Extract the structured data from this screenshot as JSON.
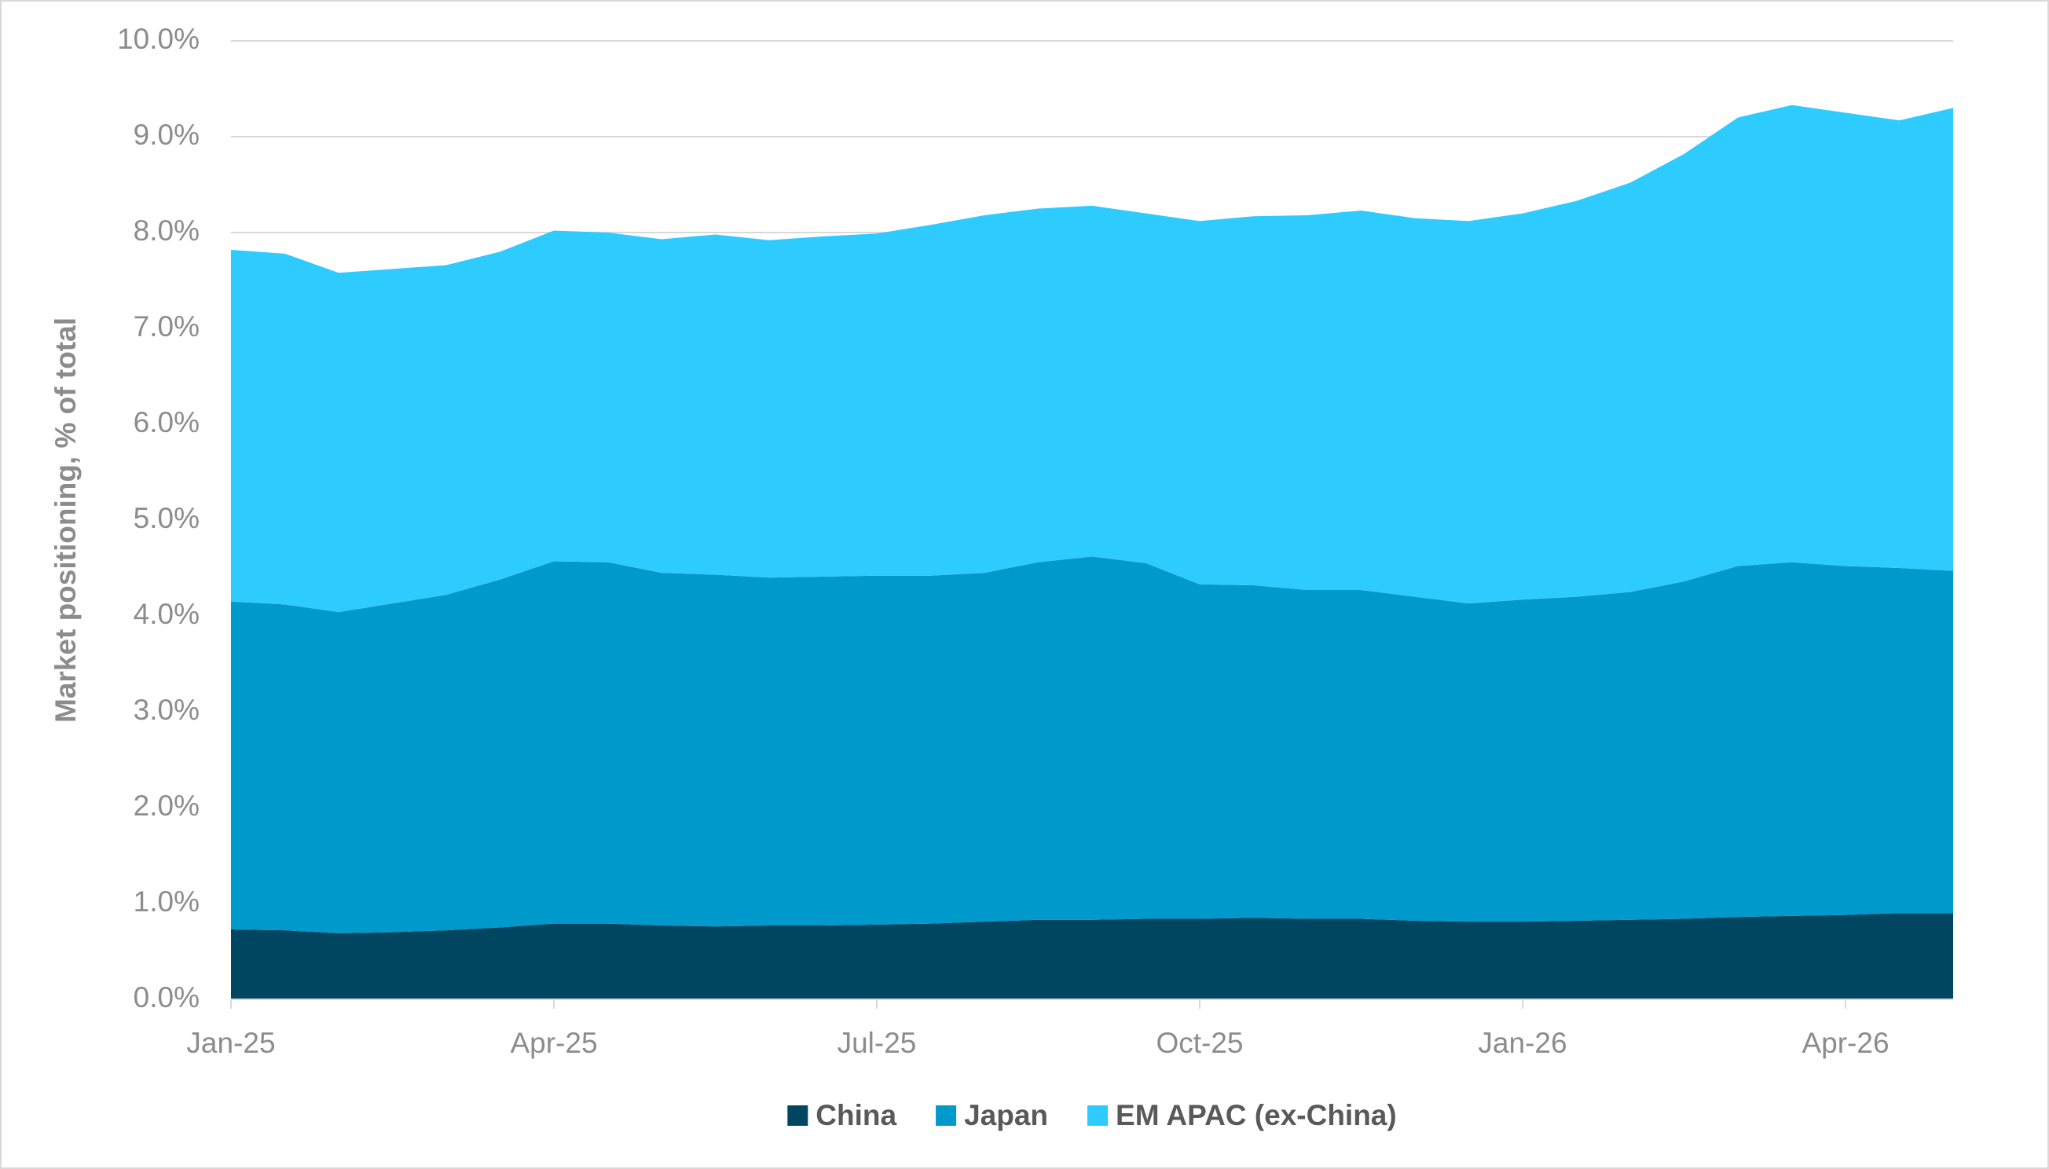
{
  "chart_data": {
    "type": "stacked_area",
    "y_axis_label": "Market positioning, % of total",
    "categories": [
      "Jan-25",
      null,
      null,
      null,
      null,
      null,
      "Apr-25",
      null,
      null,
      null,
      null,
      null,
      "Jul-25",
      null,
      null,
      null,
      null,
      null,
      "Oct-25",
      null,
      null,
      null,
      null,
      null,
      "Jan-26",
      null,
      null,
      null,
      null,
      null,
      "Apr-26",
      null,
      null
    ],
    "series": [
      {
        "name": "China",
        "color": "#004660",
        "values": [
          0.73,
          0.72,
          0.69,
          0.7,
          0.72,
          0.75,
          0.79,
          0.79,
          0.77,
          0.76,
          0.77,
          0.77,
          0.78,
          0.79,
          0.81,
          0.83,
          0.83,
          0.84,
          0.84,
          0.85,
          0.84,
          0.84,
          0.82,
          0.81,
          0.81,
          0.82,
          0.83,
          0.84,
          0.86,
          0.87,
          0.88,
          0.9,
          0.9
        ]
      },
      {
        "name": "Japan",
        "color": "#0099cc",
        "values": [
          3.42,
          3.4,
          3.35,
          3.43,
          3.5,
          3.63,
          3.78,
          3.77,
          3.68,
          3.67,
          3.63,
          3.64,
          3.64,
          3.63,
          3.64,
          3.73,
          3.79,
          3.71,
          3.49,
          3.47,
          3.43,
          3.43,
          3.38,
          3.32,
          3.36,
          3.38,
          3.42,
          3.52,
          3.66,
          3.69,
          3.64,
          3.6,
          3.57
        ]
      },
      {
        "name": "EM APAC (ex-China)",
        "color": "#2ecbff",
        "values": [
          3.67,
          3.66,
          3.54,
          3.49,
          3.44,
          3.42,
          3.45,
          3.44,
          3.48,
          3.55,
          3.52,
          3.55,
          3.57,
          3.66,
          3.73,
          3.69,
          3.66,
          3.65,
          3.79,
          3.85,
          3.91,
          3.96,
          3.95,
          3.99,
          4.03,
          4.13,
          4.27,
          4.46,
          4.68,
          4.77,
          4.73,
          4.67,
          4.83
        ]
      }
    ],
    "ylim": [
      0,
      10
    ],
    "yticks": [
      {
        "value": 0,
        "label": "0.0%"
      },
      {
        "value": 1,
        "label": "1.0%"
      },
      {
        "value": 2,
        "label": "2.0%"
      },
      {
        "value": 3,
        "label": "3.0%"
      },
      {
        "value": 4,
        "label": "4.0%"
      },
      {
        "value": 5,
        "label": "5.0%"
      },
      {
        "value": 6,
        "label": "6.0%"
      },
      {
        "value": 7,
        "label": "7.0%"
      },
      {
        "value": 8,
        "label": "8.0%"
      },
      {
        "value": 9,
        "label": "9.0%"
      },
      {
        "value": 10,
        "label": "10.0%"
      }
    ],
    "grid": true,
    "legend": "bottom"
  }
}
